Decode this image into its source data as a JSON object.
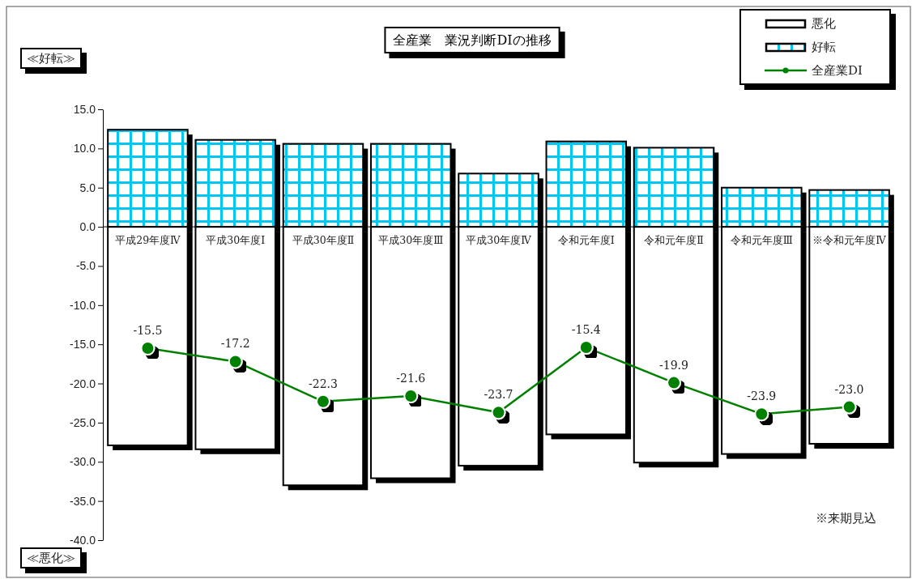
{
  "chart_data": {
    "type": "bar",
    "title": "全産業　業況判断DIの推移",
    "stacked": true,
    "categories": [
      "平成29年度Ⅳ",
      "平成30年度Ⅰ",
      "平成30年度Ⅱ",
      "平成30年度Ⅲ",
      "平成30年度Ⅳ",
      "令和元年度Ⅰ",
      "令和元年度Ⅱ",
      "令和元年度Ⅲ",
      "※令和元年度Ⅳ"
    ],
    "series": [
      {
        "name": "悪化",
        "color": "#ffffff",
        "values": [
          -27.9,
          -28.4,
          -33.0,
          -32.1,
          -30.5,
          -26.5,
          -30.1,
          -29.0,
          -27.7
        ]
      },
      {
        "name": "好転",
        "color": "#00c8f0",
        "values": [
          12.4,
          11.1,
          10.6,
          10.6,
          6.8,
          10.9,
          10.1,
          5.0,
          4.7
        ]
      },
      {
        "name": "全産業DI",
        "type": "line",
        "color": "#008000",
        "marker": "circle",
        "values": [
          -15.5,
          -17.2,
          -22.3,
          -21.6,
          -23.7,
          -15.4,
          -19.9,
          -23.9,
          -23.0
        ],
        "value_labels": [
          "-15.5",
          "-17.2",
          "-22.3",
          "-21.6",
          "-23.7",
          "-15.4",
          "-19.9",
          "-23.9",
          "-23.0"
        ]
      }
    ],
    "ylim": [
      -40,
      15
    ],
    "yticks": [
      {
        "value": 15,
        "label": "15.0"
      },
      {
        "value": 10,
        "label": "10.0"
      },
      {
        "value": 5,
        "label": "5.0"
      },
      {
        "value": 0,
        "label": "0.0"
      },
      {
        "value": -5,
        "label": "-5.0"
      },
      {
        "value": -10,
        "label": "-10.0"
      },
      {
        "value": -15,
        "label": "-15.0"
      },
      {
        "value": -20,
        "label": "-20.0"
      },
      {
        "value": -25,
        "label": "-25.0"
      },
      {
        "value": -30,
        "label": "-30.0"
      },
      {
        "value": -35,
        "label": "-35.0"
      },
      {
        "value": -40,
        "label": "-40.0"
      }
    ],
    "legend": "top right",
    "grid": false,
    "annotations": [
      "≪好転≫",
      "≪悪化≫",
      "※来期見込"
    ]
  }
}
